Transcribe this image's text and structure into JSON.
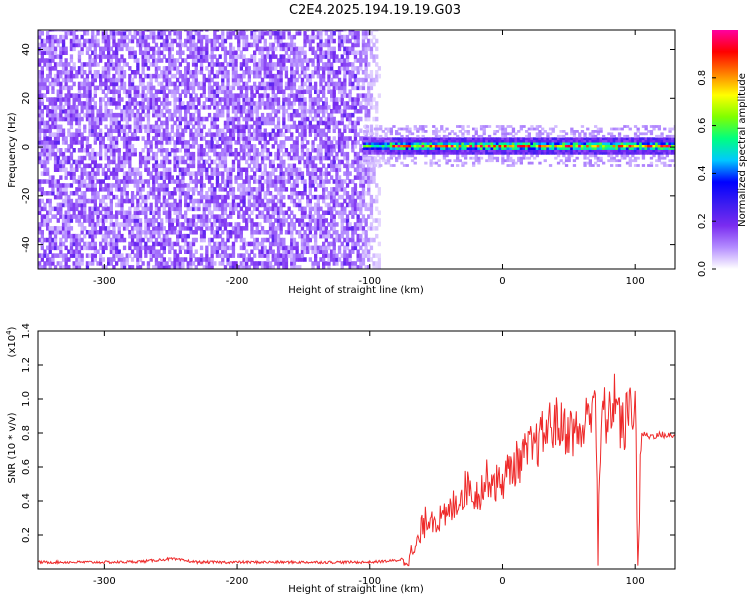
{
  "figure_title": "C2E4.2025.194.19.19.G03",
  "colors": {
    "snr_line": "#ee2a2a",
    "frame": "#000000"
  },
  "chart_data": [
    {
      "type": "heatmap",
      "xlabel": "Height of straight line (km)",
      "ylabel": "Frequency (Hz)",
      "xlim": [
        -350,
        130
      ],
      "ylim": [
        -50,
        48
      ],
      "xticks": [
        -300,
        -200,
        -100,
        0,
        100
      ],
      "yticks": [
        -40,
        -20,
        0,
        20,
        40
      ],
      "grid": false,
      "noise_region_x": [
        -350,
        -90
      ],
      "signal_band": {
        "x": [
          -105,
          130
        ],
        "center_hz": 0,
        "halfwidth_hz": 3
      },
      "colorbar": {
        "label": "Normalized spectral amplitude",
        "range": [
          0,
          1
        ],
        "ticks": [
          "0.0",
          "0.2",
          "0.4",
          "0.6",
          "0.8"
        ],
        "tick_values": [
          0.0,
          0.2,
          0.4,
          0.6,
          0.8
        ],
        "colormap": [
          "#ffffff",
          "#b48cff",
          "#7a2cf0",
          "#3c1cf0",
          "#0000ff",
          "#00c8ff",
          "#00ff80",
          "#80ff00",
          "#ffff00",
          "#ff8000",
          "#ff0000",
          "#ff00a0"
        ]
      }
    },
    {
      "type": "line",
      "xlabel": "Height of straight line (km)",
      "ylabel": "SNR (10 * v/v)",
      "y_multiplier": "(x10",
      "y_multiplier_exp": "4",
      "y_multiplier_close": ")",
      "xlim": [
        -350,
        130
      ],
      "ylim": [
        0,
        1.4
      ],
      "xticks": [
        -300,
        -200,
        -100,
        0,
        100
      ],
      "yticks": [
        0.2,
        0.4,
        0.6,
        0.8,
        1.0,
        1.2,
        1.4
      ],
      "ytick_labels": [
        "0.2",
        "0.4",
        "0.6",
        "0.8",
        "1.0",
        "1.2",
        "1.4"
      ],
      "grid": false,
      "series": [
        {
          "x": [
            -350,
            -320,
            -290,
            -270,
            -250,
            -230,
            -210,
            -190,
            -170,
            -150,
            -130,
            -110,
            -100,
            -90,
            -80,
            -70,
            -65,
            -60,
            -55,
            -50,
            -45,
            -40,
            -35,
            -30,
            -25,
            -20,
            -15,
            -10,
            -5,
            0,
            5,
            10,
            15,
            20,
            25,
            30,
            35,
            40,
            45,
            50,
            55,
            60,
            65,
            70,
            72,
            75,
            80,
            85,
            90,
            95,
            100,
            102,
            105,
            110,
            120,
            130
          ],
          "y": [
            0.04,
            0.04,
            0.04,
            0.045,
            0.06,
            0.04,
            0.04,
            0.04,
            0.04,
            0.04,
            0.04,
            0.04,
            0.04,
            0.045,
            0.05,
            0.07,
            0.12,
            0.25,
            0.32,
            0.3,
            0.28,
            0.33,
            0.4,
            0.45,
            0.5,
            0.43,
            0.48,
            0.55,
            0.5,
            0.52,
            0.58,
            0.62,
            0.65,
            0.7,
            0.72,
            0.78,
            0.84,
            0.86,
            0.83,
            0.82,
            0.8,
            0.8,
            0.9,
            1.1,
            0.1,
            0.95,
            0.85,
            1.05,
            0.8,
            0.92,
            1.0,
            0.05,
            0.8,
            0.78,
            0.79,
            0.78
          ]
        }
      ]
    }
  ]
}
